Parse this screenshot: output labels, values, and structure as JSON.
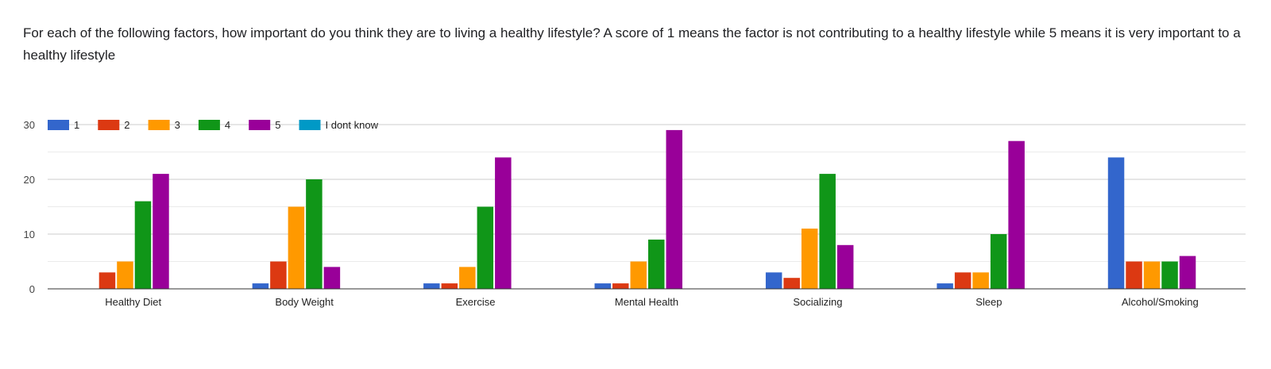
{
  "question": {
    "text": "For each of the following factors, how important do you think they are to living a healthy lifestyle? A score of 1 means the factor is not contributing to a healthy lifestyle while 5 means it is very important to a healthy lifestyle"
  },
  "chart_data": {
    "type": "bar",
    "title": "",
    "xlabel": "",
    "ylabel": "",
    "ylim": [
      0,
      30
    ],
    "yticks": [
      0,
      10,
      20,
      30
    ],
    "grid": true,
    "legend_position": "top-left",
    "categories": [
      "Healthy Diet",
      "Body Weight",
      "Exercise",
      "Mental Health",
      "Socializing",
      "Sleep",
      "Alcohol/Smoking"
    ],
    "series": [
      {
        "name": "1",
        "color": "#3366cc",
        "values": [
          0,
          1,
          1,
          1,
          3,
          1,
          24
        ]
      },
      {
        "name": "2",
        "color": "#dc3912",
        "values": [
          3,
          5,
          1,
          1,
          2,
          3,
          5
        ]
      },
      {
        "name": "3",
        "color": "#ff9900",
        "values": [
          5,
          15,
          4,
          5,
          11,
          3,
          5
        ]
      },
      {
        "name": "4",
        "color": "#109618",
        "values": [
          16,
          20,
          15,
          9,
          21,
          10,
          5
        ]
      },
      {
        "name": "5",
        "color": "#990099",
        "values": [
          21,
          4,
          24,
          29,
          8,
          27,
          6
        ]
      },
      {
        "name": "I dont know",
        "color": "#0099c6",
        "values": [
          0,
          0,
          0,
          0,
          0,
          0,
          0
        ]
      }
    ]
  }
}
